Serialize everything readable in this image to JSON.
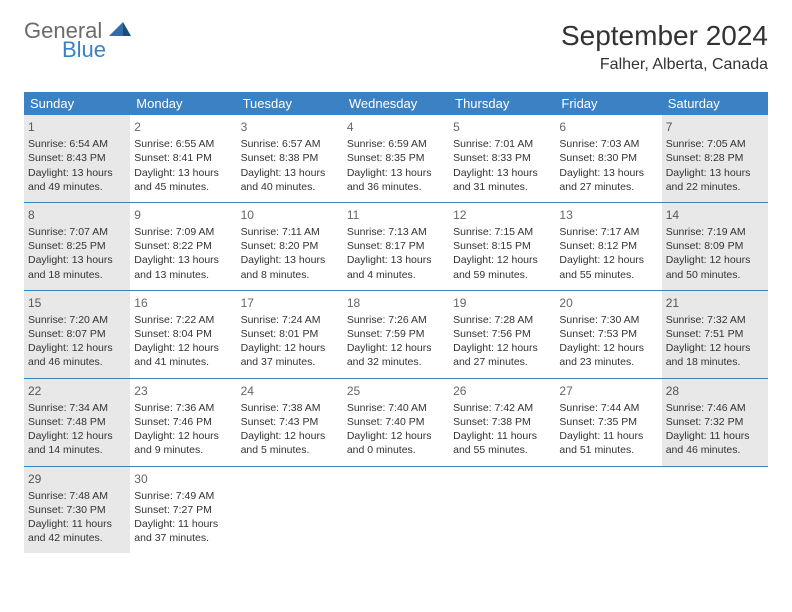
{
  "logo": {
    "text_general": "General",
    "text_blue": "Blue",
    "icon_color": "#2f6fa8"
  },
  "title": "September 2024",
  "location": "Falher, Alberta, Canada",
  "header_color": "#3b82c4",
  "shaded_bg": "#e8e8e8",
  "border_color": "#3b82c4",
  "weekdays": [
    "Sunday",
    "Monday",
    "Tuesday",
    "Wednesday",
    "Thursday",
    "Friday",
    "Saturday"
  ],
  "weeks": [
    [
      {
        "day": "1",
        "shaded": true,
        "sunrise": "Sunrise: 6:54 AM",
        "sunset": "Sunset: 8:43 PM",
        "daylight": "Daylight: 13 hours and 49 minutes."
      },
      {
        "day": "2",
        "shaded": false,
        "sunrise": "Sunrise: 6:55 AM",
        "sunset": "Sunset: 8:41 PM",
        "daylight": "Daylight: 13 hours and 45 minutes."
      },
      {
        "day": "3",
        "shaded": false,
        "sunrise": "Sunrise: 6:57 AM",
        "sunset": "Sunset: 8:38 PM",
        "daylight": "Daylight: 13 hours and 40 minutes."
      },
      {
        "day": "4",
        "shaded": false,
        "sunrise": "Sunrise: 6:59 AM",
        "sunset": "Sunset: 8:35 PM",
        "daylight": "Daylight: 13 hours and 36 minutes."
      },
      {
        "day": "5",
        "shaded": false,
        "sunrise": "Sunrise: 7:01 AM",
        "sunset": "Sunset: 8:33 PM",
        "daylight": "Daylight: 13 hours and 31 minutes."
      },
      {
        "day": "6",
        "shaded": false,
        "sunrise": "Sunrise: 7:03 AM",
        "sunset": "Sunset: 8:30 PM",
        "daylight": "Daylight: 13 hours and 27 minutes."
      },
      {
        "day": "7",
        "shaded": true,
        "sunrise": "Sunrise: 7:05 AM",
        "sunset": "Sunset: 8:28 PM",
        "daylight": "Daylight: 13 hours and 22 minutes."
      }
    ],
    [
      {
        "day": "8",
        "shaded": true,
        "sunrise": "Sunrise: 7:07 AM",
        "sunset": "Sunset: 8:25 PM",
        "daylight": "Daylight: 13 hours and 18 minutes."
      },
      {
        "day": "9",
        "shaded": false,
        "sunrise": "Sunrise: 7:09 AM",
        "sunset": "Sunset: 8:22 PM",
        "daylight": "Daylight: 13 hours and 13 minutes."
      },
      {
        "day": "10",
        "shaded": false,
        "sunrise": "Sunrise: 7:11 AM",
        "sunset": "Sunset: 8:20 PM",
        "daylight": "Daylight: 13 hours and 8 minutes."
      },
      {
        "day": "11",
        "shaded": false,
        "sunrise": "Sunrise: 7:13 AM",
        "sunset": "Sunset: 8:17 PM",
        "daylight": "Daylight: 13 hours and 4 minutes."
      },
      {
        "day": "12",
        "shaded": false,
        "sunrise": "Sunrise: 7:15 AM",
        "sunset": "Sunset: 8:15 PM",
        "daylight": "Daylight: 12 hours and 59 minutes."
      },
      {
        "day": "13",
        "shaded": false,
        "sunrise": "Sunrise: 7:17 AM",
        "sunset": "Sunset: 8:12 PM",
        "daylight": "Daylight: 12 hours and 55 minutes."
      },
      {
        "day": "14",
        "shaded": true,
        "sunrise": "Sunrise: 7:19 AM",
        "sunset": "Sunset: 8:09 PM",
        "daylight": "Daylight: 12 hours and 50 minutes."
      }
    ],
    [
      {
        "day": "15",
        "shaded": true,
        "sunrise": "Sunrise: 7:20 AM",
        "sunset": "Sunset: 8:07 PM",
        "daylight": "Daylight: 12 hours and 46 minutes."
      },
      {
        "day": "16",
        "shaded": false,
        "sunrise": "Sunrise: 7:22 AM",
        "sunset": "Sunset: 8:04 PM",
        "daylight": "Daylight: 12 hours and 41 minutes."
      },
      {
        "day": "17",
        "shaded": false,
        "sunrise": "Sunrise: 7:24 AM",
        "sunset": "Sunset: 8:01 PM",
        "daylight": "Daylight: 12 hours and 37 minutes."
      },
      {
        "day": "18",
        "shaded": false,
        "sunrise": "Sunrise: 7:26 AM",
        "sunset": "Sunset: 7:59 PM",
        "daylight": "Daylight: 12 hours and 32 minutes."
      },
      {
        "day": "19",
        "shaded": false,
        "sunrise": "Sunrise: 7:28 AM",
        "sunset": "Sunset: 7:56 PM",
        "daylight": "Daylight: 12 hours and 27 minutes."
      },
      {
        "day": "20",
        "shaded": false,
        "sunrise": "Sunrise: 7:30 AM",
        "sunset": "Sunset: 7:53 PM",
        "daylight": "Daylight: 12 hours and 23 minutes."
      },
      {
        "day": "21",
        "shaded": true,
        "sunrise": "Sunrise: 7:32 AM",
        "sunset": "Sunset: 7:51 PM",
        "daylight": "Daylight: 12 hours and 18 minutes."
      }
    ],
    [
      {
        "day": "22",
        "shaded": true,
        "sunrise": "Sunrise: 7:34 AM",
        "sunset": "Sunset: 7:48 PM",
        "daylight": "Daylight: 12 hours and 14 minutes."
      },
      {
        "day": "23",
        "shaded": false,
        "sunrise": "Sunrise: 7:36 AM",
        "sunset": "Sunset: 7:46 PM",
        "daylight": "Daylight: 12 hours and 9 minutes."
      },
      {
        "day": "24",
        "shaded": false,
        "sunrise": "Sunrise: 7:38 AM",
        "sunset": "Sunset: 7:43 PM",
        "daylight": "Daylight: 12 hours and 5 minutes."
      },
      {
        "day": "25",
        "shaded": false,
        "sunrise": "Sunrise: 7:40 AM",
        "sunset": "Sunset: 7:40 PM",
        "daylight": "Daylight: 12 hours and 0 minutes."
      },
      {
        "day": "26",
        "shaded": false,
        "sunrise": "Sunrise: 7:42 AM",
        "sunset": "Sunset: 7:38 PM",
        "daylight": "Daylight: 11 hours and 55 minutes."
      },
      {
        "day": "27",
        "shaded": false,
        "sunrise": "Sunrise: 7:44 AM",
        "sunset": "Sunset: 7:35 PM",
        "daylight": "Daylight: 11 hours and 51 minutes."
      },
      {
        "day": "28",
        "shaded": true,
        "sunrise": "Sunrise: 7:46 AM",
        "sunset": "Sunset: 7:32 PM",
        "daylight": "Daylight: 11 hours and 46 minutes."
      }
    ],
    [
      {
        "day": "29",
        "shaded": true,
        "sunrise": "Sunrise: 7:48 AM",
        "sunset": "Sunset: 7:30 PM",
        "daylight": "Daylight: 11 hours and 42 minutes."
      },
      {
        "day": "30",
        "shaded": false,
        "sunrise": "Sunrise: 7:49 AM",
        "sunset": "Sunset: 7:27 PM",
        "daylight": "Daylight: 11 hours and 37 minutes."
      },
      {
        "empty": true
      },
      {
        "empty": true
      },
      {
        "empty": true
      },
      {
        "empty": true
      },
      {
        "empty": true
      }
    ]
  ]
}
